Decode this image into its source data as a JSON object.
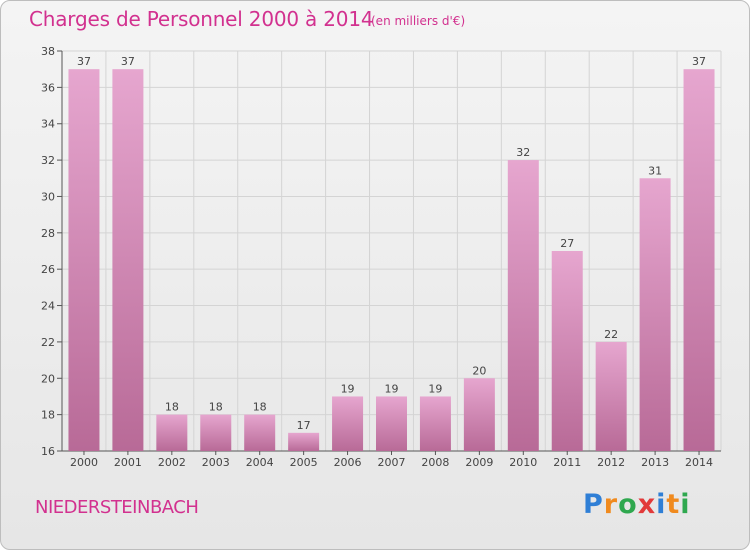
{
  "header": {
    "title": "Charges de Personnel 2000 à 2014",
    "unit_note": "(en milliers d'€)"
  },
  "footer": {
    "commune": "NIEDERSTEINBACH",
    "brand": "Proxiti",
    "brand_letters": [
      "P",
      "r",
      "o",
      "x",
      "i",
      "t",
      "i"
    ],
    "brand_colors": [
      "#2f7fd6",
      "#f08a1e",
      "#2fa84f",
      "#e23a3a",
      "#2f7fd6",
      "#f08a1e",
      "#2fa84f"
    ]
  },
  "colors": {
    "bar_top": "#e6a6cf",
    "bar_bottom": "#b86a97",
    "accent": "#d2318f"
  },
  "chart_data": {
    "type": "bar",
    "title": "Charges de Personnel 2000 à 2014",
    "subtitle": "(en milliers d'€)",
    "xlabel": "",
    "ylabel": "",
    "categories": [
      "2000",
      "2001",
      "2002",
      "2003",
      "2004",
      "2005",
      "2006",
      "2007",
      "2008",
      "2009",
      "2010",
      "2011",
      "2012",
      "2013",
      "2014"
    ],
    "values": [
      37,
      37,
      18,
      18,
      18,
      17,
      19,
      19,
      19,
      20,
      32,
      27,
      22,
      31,
      37
    ],
    "ylim": [
      16,
      38
    ],
    "yticks": [
      16,
      18,
      20,
      22,
      24,
      26,
      28,
      30,
      32,
      34,
      36,
      38
    ],
    "grid": true,
    "data_labels": true
  }
}
